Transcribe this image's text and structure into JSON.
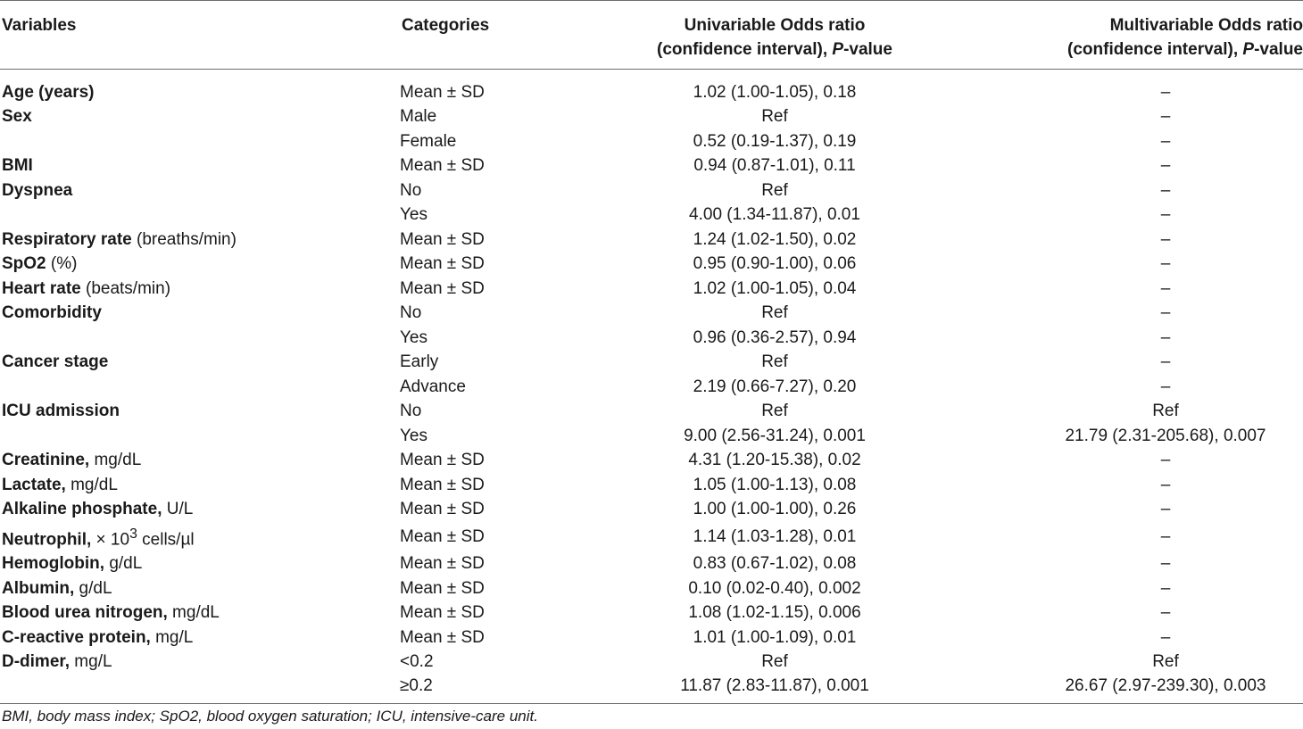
{
  "header": {
    "col1": "Variables",
    "col2": "Categories",
    "col3_line1": "Univariable Odds ratio",
    "col3_line2_prefix": "(confidence interval), ",
    "col3_line2_p": "P",
    "col3_line2_suffix": "-value",
    "col4_line1": "Multivariable Odds ratio",
    "col4_line2_prefix": "(confidence interval), ",
    "col4_line2_p": "P",
    "col4_line2_suffix": "-value"
  },
  "rows": [
    {
      "name": "Age (years)",
      "unit": "",
      "category": "Mean ± SD",
      "uni": "1.02 (1.00-1.05), 0.18",
      "multi": "–"
    },
    {
      "name": "Sex",
      "unit": "",
      "category": "Male",
      "uni": "Ref",
      "multi": "–"
    },
    {
      "name": "",
      "unit": "",
      "category": "Female",
      "uni": "0.52 (0.19-1.37), 0.19",
      "multi": "–"
    },
    {
      "name": "BMI",
      "unit": "",
      "category": "Mean ± SD",
      "uni": "0.94 (0.87-1.01), 0.11",
      "multi": "–"
    },
    {
      "name": "Dyspnea",
      "unit": "",
      "category": "No",
      "uni": "Ref",
      "multi": "–"
    },
    {
      "name": "",
      "unit": "",
      "category": "Yes",
      "uni": "4.00 (1.34-11.87), 0.01",
      "multi": "–"
    },
    {
      "name": "Respiratory rate",
      "unit": " (breaths/min)",
      "category": "Mean ± SD",
      "uni": "1.24 (1.02-1.50), 0.02",
      "multi": "–"
    },
    {
      "name": "SpO2",
      "unit": " (%)",
      "category": "Mean ± SD",
      "uni": "0.95 (0.90-1.00), 0.06",
      "multi": "–"
    },
    {
      "name": "Heart rate",
      "unit": " (beats/min)",
      "category": "Mean ± SD",
      "uni": "1.02 (1.00-1.05), 0.04",
      "multi": "–"
    },
    {
      "name": "Comorbidity",
      "unit": "",
      "category": "No",
      "uni": "Ref",
      "multi": "–"
    },
    {
      "name": "",
      "unit": "",
      "category": "Yes",
      "uni": "0.96 (0.36-2.57), 0.94",
      "multi": "–"
    },
    {
      "name": "Cancer stage",
      "unit": "",
      "category": "Early",
      "uni": "Ref",
      "multi": "–"
    },
    {
      "name": "",
      "unit": "",
      "category": "Advance",
      "uni": "2.19 (0.66-7.27), 0.20",
      "multi": "–"
    },
    {
      "name": "ICU admission",
      "unit": "",
      "category": "No",
      "uni": "Ref",
      "multi": "Ref"
    },
    {
      "name": "",
      "unit": "",
      "category": "Yes",
      "uni": "9.00 (2.56-31.24), 0.001",
      "multi": "21.79 (2.31-205.68), 0.007"
    },
    {
      "name": "Creatinine,",
      "unit": " mg/dL",
      "category": "Mean ± SD",
      "uni": "4.31 (1.20-15.38), 0.02",
      "multi": "–"
    },
    {
      "name": "Lactate,",
      "unit": " mg/dL",
      "category": "Mean ± SD",
      "uni": "1.05 (1.00-1.13), 0.08",
      "multi": "–"
    },
    {
      "name": "Alkaline phosphate,",
      "unit": " U/L",
      "category": "Mean ± SD",
      "uni": "1.00 (1.00-1.00), 0.26",
      "multi": "–"
    },
    {
      "name": "Neutrophil,",
      "unit": " × 10",
      "unit_sup": "3",
      "unit_after": " cells/µl",
      "category": "Mean ± SD",
      "uni": "1.14 (1.03-1.28), 0.01",
      "multi": "–"
    },
    {
      "name": "Hemoglobin,",
      "unit": " g/dL",
      "category": "Mean ± SD",
      "uni": "0.83 (0.67-1.02), 0.08",
      "multi": "–"
    },
    {
      "name": "Albumin,",
      "unit": " g/dL",
      "category": "Mean ± SD",
      "uni": "0.10 (0.02-0.40), 0.002",
      "multi": "–"
    },
    {
      "name": "Blood urea nitrogen,",
      "unit": " mg/dL",
      "category": "Mean ± SD",
      "uni": "1.08 (1.02-1.15), 0.006",
      "multi": "–"
    },
    {
      "name": "C-reactive protein,",
      "unit": " mg/L",
      "category": "Mean ± SD",
      "uni": "1.01 (1.00-1.09), 0.01",
      "multi": "–"
    },
    {
      "name": "D-dimer,",
      "unit": " mg/L",
      "category": "<0.2",
      "uni": "Ref",
      "multi": "Ref"
    },
    {
      "name": "",
      "unit": "",
      "category": "≥0.2",
      "uni": "11.87 (2.83-11.87), 0.001",
      "multi": "26.67 (2.97-239.30), 0.003"
    }
  ],
  "footnote": "BMI, body mass index; SpO2, blood oxygen saturation; ICU, intensive-care unit."
}
